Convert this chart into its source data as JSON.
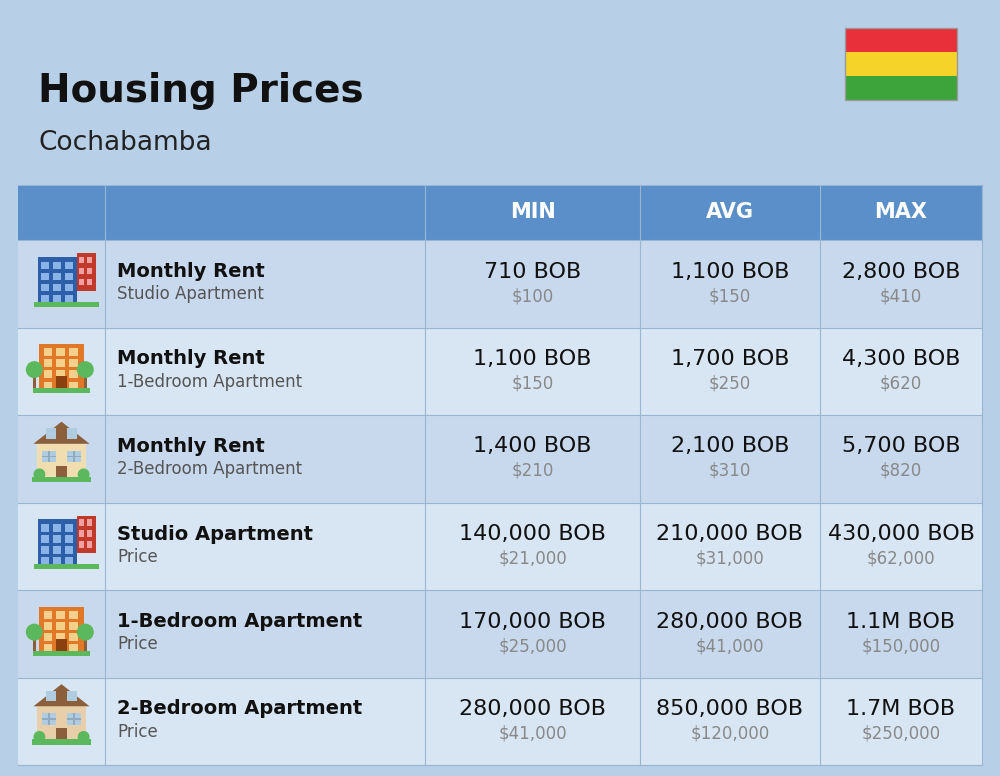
{
  "title": "Housing Prices",
  "subtitle": "Cochabamba",
  "background_color": "#b8cfe8",
  "header_bg_color": "#5b8fc9",
  "header_text_color": "#ffffff",
  "row_bg_even": "#c8d9ed",
  "row_bg_odd": "#d8e6f3",
  "col_headers": [
    "MIN",
    "AVG",
    "MAX"
  ],
  "rows": [
    {
      "bold_text": "Monthly Rent",
      "light_text": "Studio Apartment",
      "min_bob": "710 BOB",
      "min_usd": "$100",
      "avg_bob": "1,100 BOB",
      "avg_usd": "$150",
      "max_bob": "2,800 BOB",
      "max_usd": "$410",
      "icon_type": "blue_office"
    },
    {
      "bold_text": "Monthly Rent",
      "light_text": "1-Bedroom Apartment",
      "min_bob": "1,100 BOB",
      "min_usd": "$150",
      "avg_bob": "1,700 BOB",
      "avg_usd": "$250",
      "max_bob": "4,300 BOB",
      "max_usd": "$620",
      "icon_type": "orange_apt"
    },
    {
      "bold_text": "Monthly Rent",
      "light_text": "2-Bedroom Apartment",
      "min_bob": "1,400 BOB",
      "min_usd": "$210",
      "avg_bob": "2,100 BOB",
      "avg_usd": "$310",
      "max_bob": "5,700 BOB",
      "max_usd": "$820",
      "icon_type": "beige_house"
    },
    {
      "bold_text": "Studio Apartment",
      "light_text": "Price",
      "min_bob": "140,000 BOB",
      "min_usd": "$21,000",
      "avg_bob": "210,000 BOB",
      "avg_usd": "$31,000",
      "max_bob": "430,000 BOB",
      "max_usd": "$62,000",
      "icon_type": "blue_office"
    },
    {
      "bold_text": "1-Bedroom Apartment",
      "light_text": "Price",
      "min_bob": "170,000 BOB",
      "min_usd": "$25,000",
      "avg_bob": "280,000 BOB",
      "avg_usd": "$41,000",
      "max_bob": "1.1M BOB",
      "max_usd": "$150,000",
      "icon_type": "orange_apt"
    },
    {
      "bold_text": "2-Bedroom Apartment",
      "light_text": "Price",
      "min_bob": "280,000 BOB",
      "min_usd": "$41,000",
      "avg_bob": "850,000 BOB",
      "avg_usd": "$120,000",
      "max_bob": "1.7M BOB",
      "max_usd": "$250,000",
      "icon_type": "beige_house2"
    }
  ],
  "flag_colors": [
    "#e8303a",
    "#f5d328",
    "#3da43b"
  ],
  "title_fontsize": 28,
  "subtitle_fontsize": 19,
  "header_fontsize": 15,
  "bob_fontsize": 16,
  "usd_fontsize": 12,
  "label_bold_fontsize": 14,
  "label_light_fontsize": 12
}
